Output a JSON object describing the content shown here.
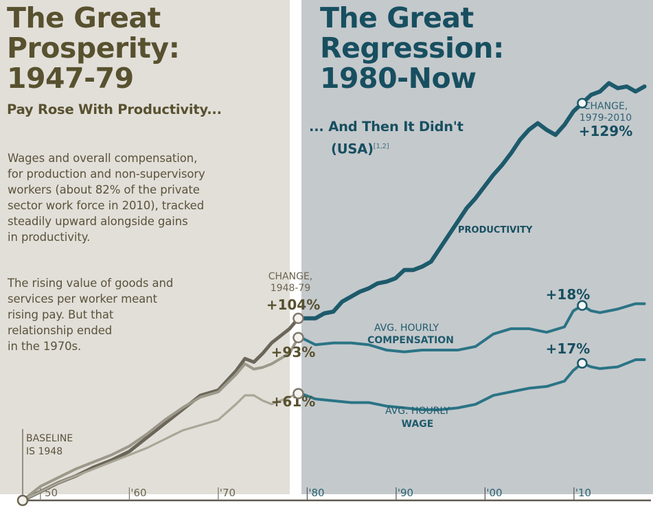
{
  "header": {
    "left_title_lines": [
      "The Great",
      "Prosperity:",
      "1947-79"
    ],
    "left_subtitle": "Pay Rose With Productivity...",
    "right_title_lines": [
      "The Great",
      "Regression:",
      "1980-Now"
    ],
    "right_subtitle_line1": "... And Then It Didn't",
    "right_subtitle_line2": "(USA)",
    "right_subtitle_sup": "[1,2]"
  },
  "body": {
    "paragraph1_lines": [
      "Wages and overall compensation,",
      "for production and non-supervisory",
      "workers (about 82% of the private",
      "sector work force in 2010), tracked",
      "steadily upward alongside gains",
      "in productivity."
    ],
    "paragraph2_lines": [
      "The rising value of goods and",
      "services per worker meant",
      "rising pay. But that",
      "relationship ended",
      "in the 1970s."
    ]
  },
  "colors": {
    "left_bg": "#e2dfd9",
    "right_bg": "#c4c9cc",
    "left_text": "#58512f",
    "right_text": "#174f60",
    "productivity_left": "#6b6659",
    "compensation_left": "#9c988a",
    "wage_left": "#aaa697",
    "right_line": "#1c5a6b",
    "right_line_light": "#2a7485"
  },
  "chart_data": {
    "type": "line",
    "title": "The Great Prosperity: 1947-79 / The Great Regression: 1980-Now",
    "xlabel": "",
    "ylabel": "",
    "x_ticks": [
      {
        "year": 1950,
        "label": "'50"
      },
      {
        "year": 1960,
        "label": "'60"
      },
      {
        "year": 1970,
        "label": "'70"
      },
      {
        "year": 1980,
        "label": "'80"
      },
      {
        "year": 1990,
        "label": "'90"
      },
      {
        "year": 2000,
        "label": "'00"
      },
      {
        "year": 2010,
        "label": "'10"
      }
    ],
    "xlim": [
      1948,
      2017
    ],
    "grid": false,
    "baseline_note": [
      "BASELINE",
      "IS 1948"
    ],
    "panels": [
      {
        "name": "1948-79",
        "unit": "% change since 1948",
        "ylim": [
          0,
          110
        ],
        "change_note": [
          "CHANGE,",
          "1948-79"
        ],
        "series": [
          {
            "name": "Productivity",
            "x": [
              1948,
              1950,
              1952,
              1954,
              1956,
              1958,
              1960,
              1962,
              1964,
              1966,
              1968,
              1970,
              1972,
              1973,
              1974,
              1975,
              1976,
              1977,
              1978,
              1979
            ],
            "values": [
              0,
              5,
              10,
              14,
              19,
              23,
              28,
              36,
              44,
              52,
              60,
              63,
              74,
              81,
              79,
              84,
              90,
              94,
              98,
              104
            ],
            "end_label": "+104%"
          },
          {
            "name": "Avg. hourly compensation",
            "x": [
              1948,
              1950,
              1952,
              1954,
              1956,
              1958,
              1960,
              1962,
              1964,
              1966,
              1968,
              1970,
              1972,
              1973,
              1974,
              1975,
              1976,
              1977,
              1978,
              1979
            ],
            "values": [
              0,
              8,
              13,
              18,
              22,
              26,
              31,
              38,
              46,
              53,
              59,
              62,
              72,
              78,
              75,
              76,
              78,
              81,
              84,
              93
            ],
            "end_label": "+93%"
          },
          {
            "name": "Avg. hourly wage",
            "x": [
              1948,
              1950,
              1952,
              1954,
              1956,
              1958,
              1960,
              1962,
              1964,
              1966,
              1968,
              1970,
              1972,
              1973,
              1974,
              1975,
              1976,
              1977,
              1978,
              1979
            ],
            "values": [
              0,
              5,
              10,
              14,
              18,
              22,
              26,
              30,
              35,
              40,
              43,
              46,
              55,
              60,
              60,
              57,
              55,
              57,
              59,
              61
            ],
            "end_label": "+61%"
          }
        ]
      },
      {
        "name": "1979-2010",
        "unit": "% change since 1979",
        "ylim": [
          0,
          140
        ],
        "change_note": [
          "CHANGE,",
          "1979-2010"
        ],
        "series": [
          {
            "name": "Productivity",
            "label": "PRODUCTIVITY",
            "x": [
              1979,
              1980,
              1981,
              1982,
              1983,
              1984,
              1985,
              1986,
              1987,
              1988,
              1989,
              1990,
              1991,
              1992,
              1993,
              1994,
              1995,
              1996,
              1997,
              1998,
              1999,
              2000,
              2001,
              2002,
              2003,
              2004,
              2005,
              2006,
              2007,
              2008,
              2009,
              2010,
              2011,
              2012,
              2013,
              2014,
              2015,
              2016,
              2017
            ],
            "values": [
              0,
              0,
              3,
              4,
              10,
              13,
              16,
              18,
              21,
              22,
              24,
              29,
              29,
              31,
              34,
              42,
              50,
              58,
              66,
              72,
              79,
              86,
              92,
              99,
              107,
              113,
              117,
              113,
              110,
              116,
              124,
              129,
              134,
              136,
              141,
              138,
              139,
              136,
              139
            ],
            "end_label": "+129%"
          },
          {
            "name": "Avg. hourly compensation",
            "label": "AVG. HOURLY COMPENSATION",
            "x": [
              1979,
              1980,
              1982,
              1984,
              1986,
              1988,
              1990,
              1992,
              1994,
              1996,
              1998,
              2000,
              2002,
              2004,
              2006,
              2008,
              2009,
              2010,
              2011,
              2012,
              2014,
              2016,
              2017
            ],
            "values": [
              0,
              -4,
              -3,
              -3,
              -4,
              -7,
              -8,
              -7,
              -7,
              -7,
              -5,
              2,
              5,
              5,
              3,
              6,
              15,
              18,
              15,
              14,
              16,
              19,
              19
            ],
            "end_label": "+18%"
          },
          {
            "name": "Avg. hourly wage",
            "label": "AVG. HOURLY WAGE",
            "x": [
              1979,
              1980,
              1982,
              1984,
              1986,
              1988,
              1990,
              1992,
              1994,
              1996,
              1998,
              2000,
              2002,
              2004,
              2006,
              2008,
              2009,
              2010,
              2011,
              2012,
              2014,
              2016,
              2017
            ],
            "values": [
              0,
              -3,
              -4,
              -5,
              -5,
              -7,
              -8,
              -9,
              -9,
              -8,
              -6,
              -1,
              1,
              3,
              4,
              7,
              13,
              17,
              15,
              14,
              15,
              19,
              19
            ],
            "end_label": "+17%"
          }
        ]
      }
    ],
    "series_labels": {
      "productivity": "PRODUCTIVITY",
      "compensation_line1": "AVG. HOURLY",
      "compensation_line2": "COMPENSATION",
      "wage_line1": "AVG. HOURLY",
      "wage_line2": "WAGE"
    }
  }
}
